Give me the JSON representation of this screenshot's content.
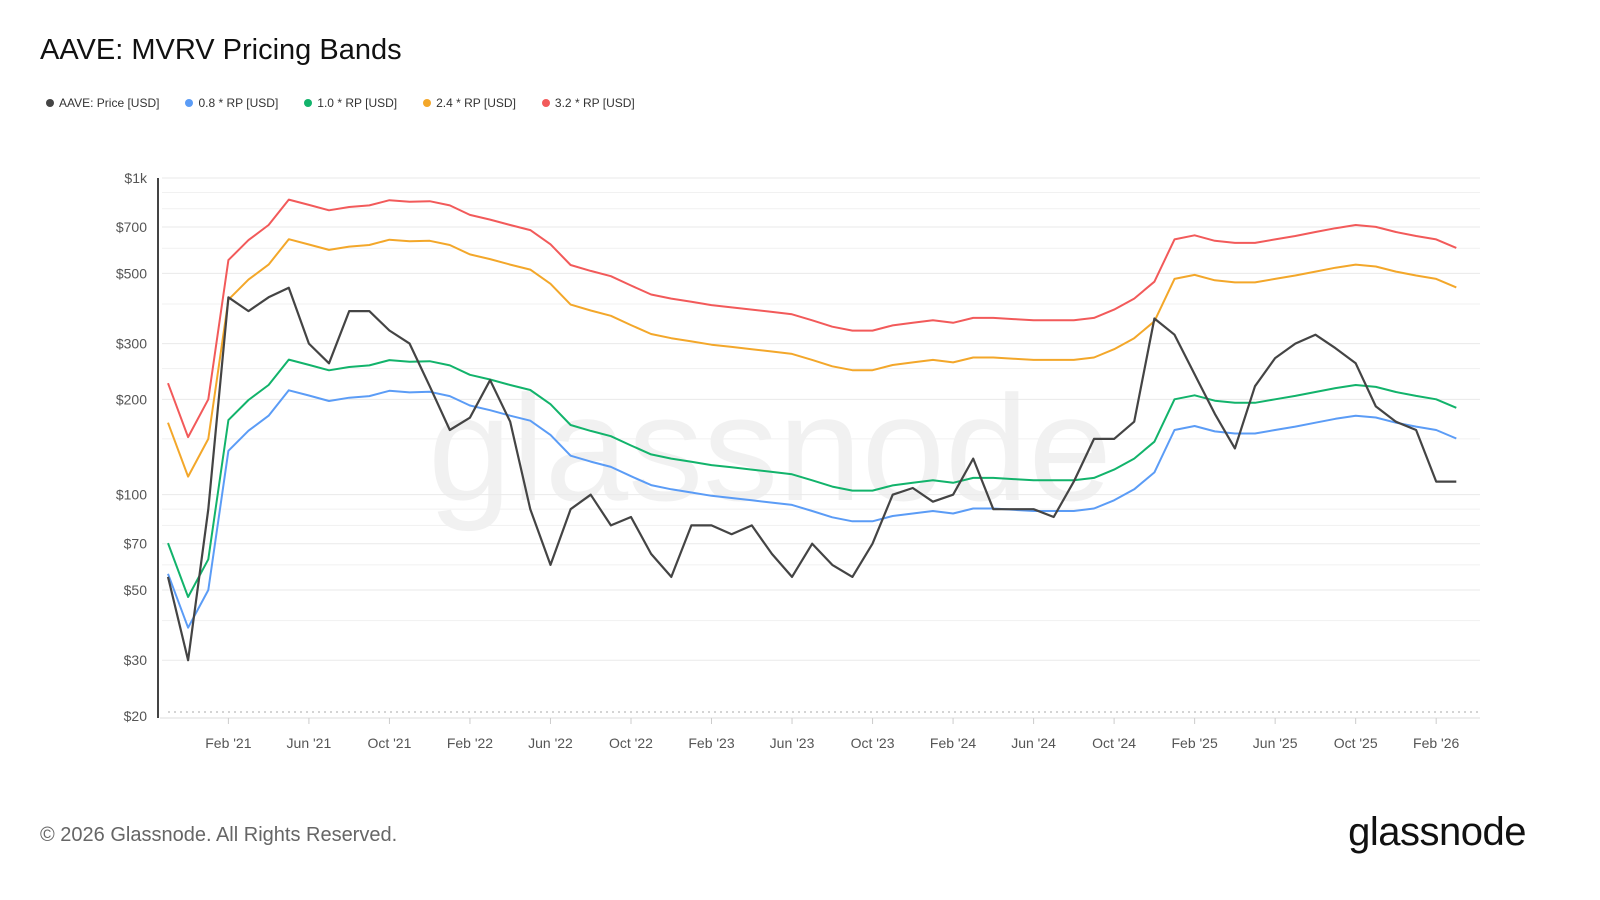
{
  "chart_data": {
    "type": "line",
    "title": "AAVE: MVRV Pricing Bands",
    "xlabel": "",
    "ylabel": "",
    "yscale": "log",
    "ylim": [
      20,
      1000
    ],
    "yticks": [
      {
        "v": 20,
        "label": "$20"
      },
      {
        "v": 30,
        "label": "$30"
      },
      {
        "v": 50,
        "label": "$50"
      },
      {
        "v": 70,
        "label": "$70"
      },
      {
        "v": 100,
        "label": "$100"
      },
      {
        "v": 200,
        "label": "$200"
      },
      {
        "v": 300,
        "label": "$300"
      },
      {
        "v": 500,
        "label": "$500"
      },
      {
        "v": 700,
        "label": "$700"
      },
      {
        "v": 1000,
        "label": "$1k"
      }
    ],
    "xticks": [
      {
        "i": 3,
        "label": "Feb '21"
      },
      {
        "i": 7,
        "label": "Jun '21"
      },
      {
        "i": 11,
        "label": "Oct '21"
      },
      {
        "i": 15,
        "label": "Feb '22"
      },
      {
        "i": 19,
        "label": "Jun '22"
      },
      {
        "i": 23,
        "label": "Oct '22"
      },
      {
        "i": 27,
        "label": "Feb '23"
      },
      {
        "i": 31,
        "label": "Jun '23"
      },
      {
        "i": 35,
        "label": "Oct '23"
      },
      {
        "i": 39,
        "label": "Feb '24"
      },
      {
        "i": 43,
        "label": "Jun '24"
      },
      {
        "i": 47,
        "label": "Oct '24"
      },
      {
        "i": 51,
        "label": "Feb '25"
      },
      {
        "i": 55,
        "label": "Jun '25"
      },
      {
        "i": 59,
        "label": "Oct '25"
      },
      {
        "i": 63,
        "label": "Feb '26"
      }
    ],
    "x_start": "Nov 2020",
    "x_step": "1 month",
    "legend_position": "top-left",
    "realized_price": [
      70.3,
      47.5,
      62.5,
      172,
      199,
      222,
      267,
      257,
      247,
      253,
      256,
      266,
      263,
      264,
      256,
      239,
      231,
      222,
      214,
      193,
      166,
      159,
      153,
      143,
      134,
      130,
      127,
      124,
      122,
      120,
      118,
      116,
      111,
      106,
      103,
      103,
      107,
      109,
      111,
      109,
      113,
      113,
      112,
      111,
      111,
      111,
      113,
      120,
      130,
      147,
      200,
      206,
      198,
      195,
      195,
      200,
      205,
      211,
      217,
      222,
      219,
      211,
      205,
      200,
      188
    ],
    "series": [
      {
        "name": "AAVE: Price [USD]",
        "color": "#444444",
        "values": [
          55,
          30,
          90,
          420,
          380,
          420,
          450,
          300,
          260,
          380,
          380,
          330,
          300,
          220,
          160,
          175,
          230,
          170,
          90,
          60,
          90,
          100,
          80,
          85,
          65,
          55,
          80,
          80,
          75,
          80,
          65,
          55,
          70,
          60,
          55,
          70,
          100,
          105,
          95,
          100,
          130,
          90,
          90,
          90,
          85,
          110,
          150,
          150,
          170,
          360,
          320,
          240,
          180,
          140,
          220,
          270,
          300,
          320,
          290,
          260,
          190,
          170,
          160,
          110,
          110
        ]
      },
      {
        "name": "0.8 * RP [USD]",
        "color": "#5b9cf6",
        "multiplier": 0.8
      },
      {
        "name": "1.0 * RP [USD]",
        "color": "#12b36b",
        "multiplier": 1.0
      },
      {
        "name": "2.4 * RP [USD]",
        "color": "#f3a72a",
        "multiplier": 2.4
      },
      {
        "name": "3.2 * RP [USD]",
        "color": "#f25a5a",
        "multiplier": 3.2
      }
    ]
  },
  "watermark": "glassnode",
  "footer": "© 2026 Glassnode. All Rights Reserved.",
  "logo": "glassnode"
}
